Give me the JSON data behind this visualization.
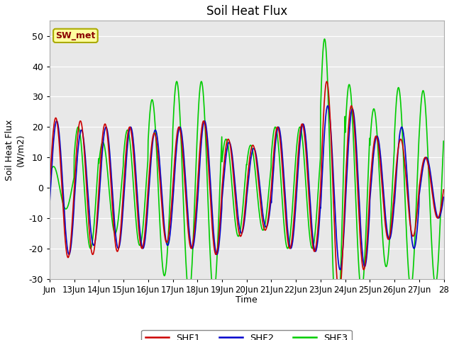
{
  "title": "Soil Heat Flux",
  "ylabel": "Soil Heat Flux (W/m2)",
  "xlabel": "Time",
  "ylim": [
    -30,
    55
  ],
  "yticks": [
    -30,
    -20,
    -10,
    0,
    10,
    20,
    30,
    40,
    50
  ],
  "xtick_labels": [
    "Jun",
    "13Jun",
    "14Jun",
    "15Jun",
    "16Jun",
    "17Jun",
    "18Jun",
    "19Jun",
    "20Jun",
    "21Jun",
    "22Jun",
    "23Jun",
    "24Jun",
    "25Jun",
    "26Jun",
    "27Jun",
    "28"
  ],
  "series_colors": [
    "#cc0000",
    "#0000cc",
    "#00cc00"
  ],
  "series_names": [
    "SHF1",
    "SHF2",
    "SHF3"
  ],
  "line_width": 1.2,
  "bg_color": "#e8e8e8",
  "annotation_text": "SW_met",
  "annotation_color": "#8b0000",
  "annotation_bg": "#ffffa0",
  "annotation_border": "#aaaa00",
  "day_amplitudes_shf1": [
    23,
    22,
    21,
    20,
    18,
    20,
    22,
    16,
    14,
    20,
    21,
    35,
    27,
    17,
    16,
    10
  ],
  "day_amplitudes_shf2": [
    22,
    19,
    20,
    20,
    19,
    20,
    22,
    15,
    13,
    20,
    21,
    27,
    26,
    17,
    20,
    10
  ],
  "day_amplitudes_shf3": [
    7,
    20,
    15,
    19,
    29,
    35,
    35,
    16,
    14,
    20,
    20,
    49,
    34,
    26,
    33,
    32
  ],
  "phase_shf1": 0.0,
  "phase_shf2": -0.08,
  "phase_shf3": 0.18,
  "n_days": 16,
  "pts_per_day": 96
}
